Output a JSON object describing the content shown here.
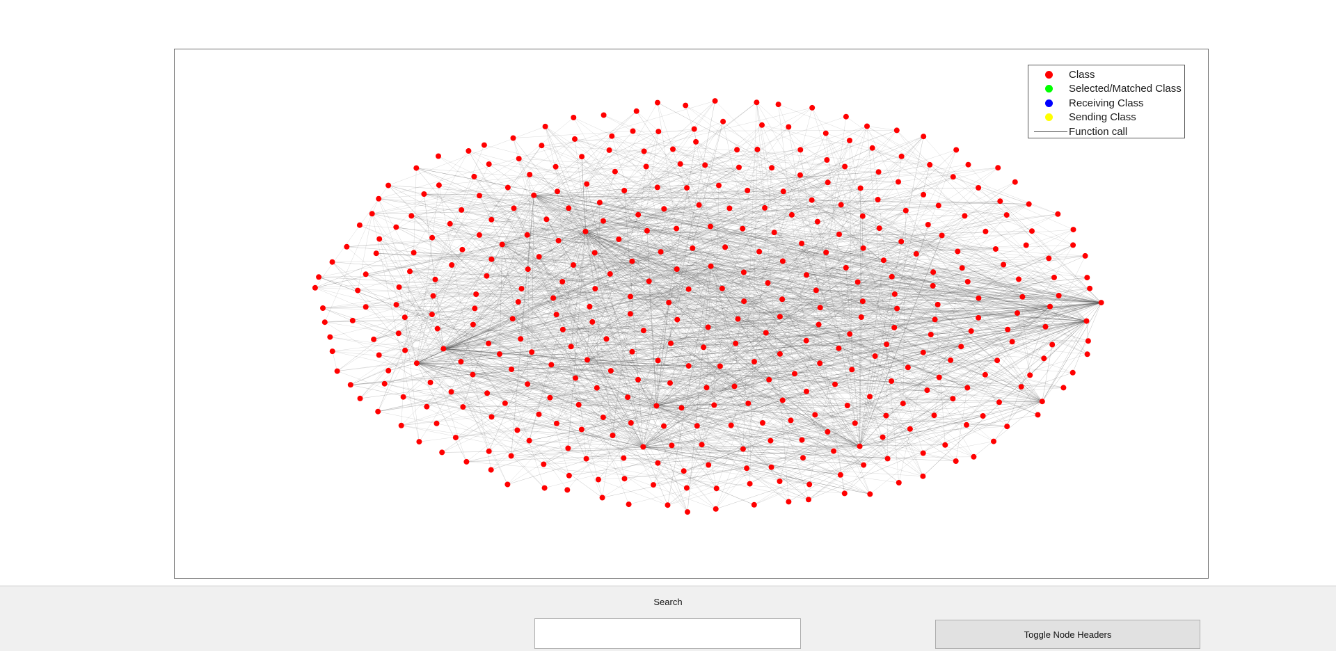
{
  "legend": {
    "items": [
      {
        "label": "Class",
        "color": "#ff0000",
        "marker": "dot"
      },
      {
        "label": "Selected/Matched Class",
        "color": "#00ff00",
        "marker": "dot"
      },
      {
        "label": "Receiving Class",
        "color": "#0000ff",
        "marker": "dot"
      },
      {
        "label": "Sending Class",
        "color": "#ffff00",
        "marker": "dot"
      },
      {
        "label": "Function call",
        "color": "#444444",
        "marker": "line"
      }
    ]
  },
  "graph": {
    "node_color": "#ff0000",
    "edge_color": "#505050"
  },
  "controls": {
    "search_label": "Search",
    "search_value": "",
    "toggle_label": "Toggle Node Headers"
  }
}
